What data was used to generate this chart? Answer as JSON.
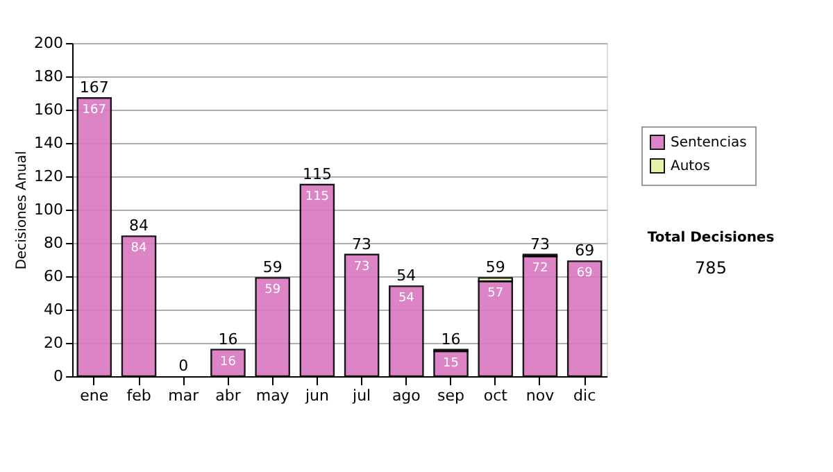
{
  "chart_data": {
    "type": "bar",
    "stacked": true,
    "ylabel": "Decisiones Anual",
    "categories": [
      "ene",
      "feb",
      "mar",
      "abr",
      "may",
      "jun",
      "jul",
      "ago",
      "sep",
      "oct",
      "nov",
      "dic"
    ],
    "series": [
      {
        "name": "Sentencias",
        "color": "#d977bf",
        "values": [
          167,
          84,
          0,
          16,
          59,
          115,
          73,
          54,
          15,
          57,
          72,
          69
        ],
        "value_labels": [
          "167",
          "84",
          null,
          "16",
          "59",
          "115",
          "73",
          "54",
          "15",
          "57",
          "72",
          "69"
        ]
      },
      {
        "name": "Autos",
        "color": "#e6f0a0",
        "values": [
          0,
          0,
          0,
          0,
          0,
          0,
          0,
          0,
          1,
          2,
          1,
          0
        ]
      }
    ],
    "totals": [
      "167",
      "84",
      "0",
      "16",
      "59",
      "115",
      "73",
      "54",
      "16",
      "59",
      "73",
      "69"
    ],
    "ylim": [
      0,
      200
    ],
    "yticks": [
      0,
      20,
      40,
      60,
      80,
      100,
      120,
      140,
      160,
      180,
      200
    ],
    "grid": "y",
    "legend": "right",
    "annotations": [
      "Total Decisiones",
      "785"
    ]
  }
}
